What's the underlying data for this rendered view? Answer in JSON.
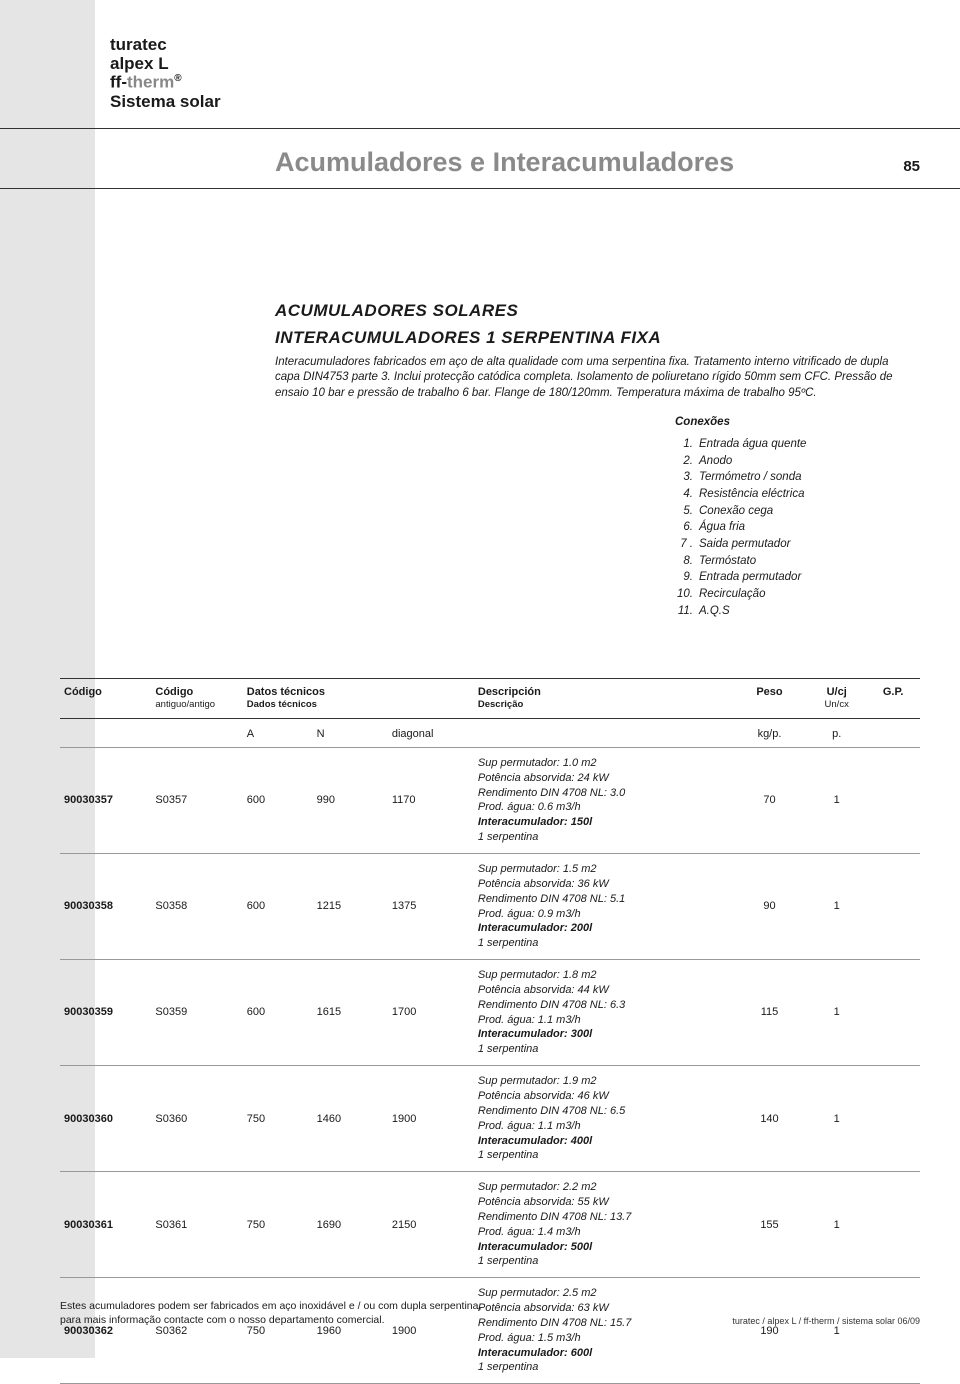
{
  "brand": {
    "line1": "turatec",
    "line2": "alpex L",
    "line3a": "ff-",
    "line3b": "therm",
    "line3sup": "®",
    "line4": "Sistema solar"
  },
  "page_title": "Acumuladores e Interacumuladores",
  "page_number": "85",
  "section": {
    "title1": "ACUMULADORES SOLARES",
    "title2": "INTERACUMULADORES 1 SERPENTINA FIXA",
    "desc": "Interacumuladores fabricados em aço de alta qualidade com uma serpentina fixa. Tratamento interno vitrificado de dupla capa DIN4753 parte 3. Inclui protecção catódica completa. Isolamento de poliuretano rígido 50mm sem CFC. Pressão de ensaio 10 bar e pressão de trabalho 6 bar. Flange de 180/120mm. Temperatura máxima de trabalho 95ºC."
  },
  "connections": {
    "title": "Conexões",
    "items": [
      {
        "n": "1.",
        "t": "Entrada água quente"
      },
      {
        "n": "2.",
        "t": "Anodo"
      },
      {
        "n": "3.",
        "t": "Termómetro / sonda"
      },
      {
        "n": "4.",
        "t": "Resistência eléctrica"
      },
      {
        "n": "5.",
        "t": "Conexão cega"
      },
      {
        "n": "6.",
        "t": "Água fria"
      },
      {
        "n": "7 .",
        "t": "Saida permutador"
      },
      {
        "n": "8.",
        "t": "Termóstato"
      },
      {
        "n": "9.",
        "t": "Entrada permutador"
      },
      {
        "n": "10.",
        "t": "Recirculação"
      },
      {
        "n": "11.",
        "t": "A.Q.S"
      }
    ]
  },
  "table": {
    "h1": {
      "codigo": "Código",
      "antigo": "Código",
      "antigo_sub": "antiguo/antigo",
      "datos": "Datos técnicos",
      "datos_sub": "Dados técnicos",
      "desc": "Descripción",
      "desc_sub": "Descrição",
      "peso": "Peso",
      "ucj": "U/cj",
      "ucj_sub": "Un/cx",
      "gp": "G.P."
    },
    "h2": {
      "a": "A",
      "n": "N",
      "diag": "diagonal",
      "kg": "kg/p.",
      "p": "p."
    },
    "rows": [
      {
        "codigo": "90030357",
        "antigo": "S0357",
        "a": "600",
        "n": "990",
        "diag": "1170",
        "desc": [
          "Sup permutador: 1.0 m2",
          "Potência absorvida: 24 kW",
          "Rendimento DIN 4708 NL: 3.0",
          "Prod. água: 0.6 m3/h"
        ],
        "desc_bold": "Interacumulador: 150l",
        "desc_tail": "1 serpentina",
        "peso": "70",
        "ucj": "1",
        "gp": ""
      },
      {
        "codigo": "90030358",
        "antigo": "S0358",
        "a": "600",
        "n": "1215",
        "diag": "1375",
        "desc": [
          "Sup permutador: 1.5 m2",
          "Potência absorvida: 36 kW",
          "Rendimento DIN 4708 NL: 5.1",
          "Prod. água: 0.9 m3/h"
        ],
        "desc_bold": "Interacumulador: 200l",
        "desc_tail": "1 serpentina",
        "peso": "90",
        "ucj": "1",
        "gp": ""
      },
      {
        "codigo": "90030359",
        "antigo": "S0359",
        "a": "600",
        "n": "1615",
        "diag": "1700",
        "desc": [
          "Sup permutador: 1.8 m2",
          "Potência absorvida: 44 kW",
          "Rendimento DIN 4708 NL: 6.3",
          "Prod. água: 1.1 m3/h"
        ],
        "desc_bold": "Interacumulador: 300l",
        "desc_tail": "1 serpentina",
        "peso": "115",
        "ucj": "1",
        "gp": ""
      },
      {
        "codigo": "90030360",
        "antigo": "S0360",
        "a": "750",
        "n": "1460",
        "diag": "1900",
        "desc": [
          "Sup permutador: 1.9 m2",
          "Potência absorvida: 46 kW",
          "Rendimento DIN 4708 NL: 6.5",
          "Prod. água: 1.1 m3/h"
        ],
        "desc_bold": "Interacumulador: 400l",
        "desc_tail": "1 serpentina",
        "peso": "140",
        "ucj": "1",
        "gp": ""
      },
      {
        "codigo": "90030361",
        "antigo": "S0361",
        "a": "750",
        "n": "1690",
        "diag": "2150",
        "desc": [
          "Sup permutador: 2.2 m2",
          "Potência absorvida: 55 kW",
          "Rendimento DIN 4708 NL: 13.7",
          "Prod. água: 1.4 m3/h"
        ],
        "desc_bold": "Interacumulador: 500l",
        "desc_tail": "1 serpentina",
        "peso": "155",
        "ucj": "1",
        "gp": ""
      },
      {
        "codigo": "90030362",
        "antigo": "S0362",
        "a": "750",
        "n": "1960",
        "diag": "1900",
        "desc": [
          "Sup permutador: 2.5 m2",
          "Potência absorvida: 63 kW",
          "Rendimento DIN 4708 NL: 15.7",
          "Prod. água: 1.5 m3/h"
        ],
        "desc_bold": "Interacumulador: 600l",
        "desc_tail": "1 serpentina",
        "peso": "190",
        "ucj": "1",
        "gp": ""
      }
    ]
  },
  "footnote": {
    "left1": "Estes acumuladores podem ser fabricados em aço inoxidável e / ou com dupla serpentina,",
    "left2": "para mais informação contacte com o nosso departamento comercial.",
    "right": "turatec / alpex L / ff-therm / sistema solar  06/09"
  }
}
